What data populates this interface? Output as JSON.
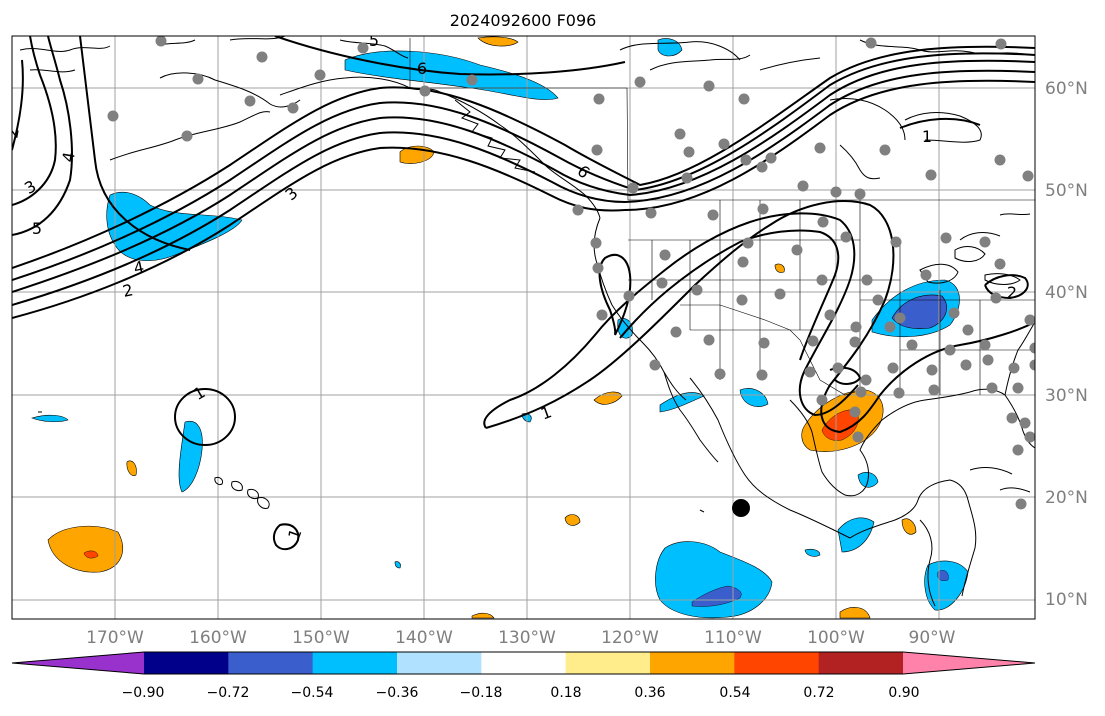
{
  "title": "2024092600 F096",
  "lon_ticks": [
    "170°W",
    "160°W",
    "150°W",
    "140°W",
    "130°W",
    "120°W",
    "110°W",
    "100°W",
    "90°W"
  ],
  "lat_ticks": [
    "60°N",
    "50°N",
    "40°N",
    "30°N",
    "20°N",
    "10°N"
  ],
  "contour_labels": [
    "1",
    "1",
    "1",
    "1",
    "2",
    "2",
    "2",
    "3",
    "3",
    "4",
    "4",
    "5",
    "5",
    "6",
    "6"
  ],
  "colorbar": {
    "tick_labels": [
      "−0.90",
      "−0.72",
      "−0.54",
      "−0.36",
      "−0.18",
      "0.18",
      "0.36",
      "0.54",
      "0.72",
      "0.90"
    ],
    "colors": [
      "#9932cc",
      "#00008b",
      "#3a5fcd",
      "#00bfff",
      "#b0e2ff",
      "#ffffff",
      "#ffec8b",
      "#ffa500",
      "#ff4500",
      "#b22222",
      "#ff82ab"
    ]
  },
  "colors": {
    "land_outline": "#000000",
    "grid": "#a0a0a0",
    "station_dot": "#808080",
    "marker": "#000000",
    "tick_label": "#7f7f7f"
  }
}
